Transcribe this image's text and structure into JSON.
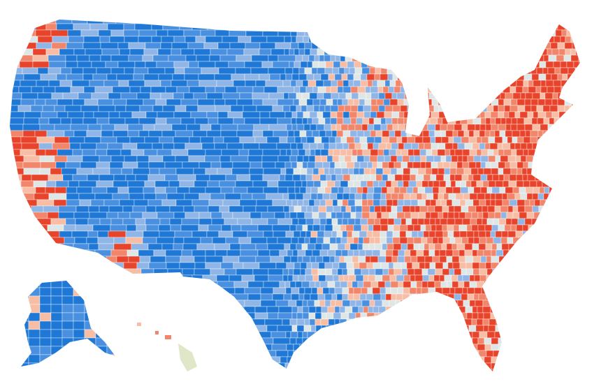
{
  "palette": [
    "#1f78d6",
    "#4a90e0",
    "#8fb6e6",
    "#dfe7e6",
    "#f7bda5",
    "#f2866a",
    "#e8432b"
  ]
}
